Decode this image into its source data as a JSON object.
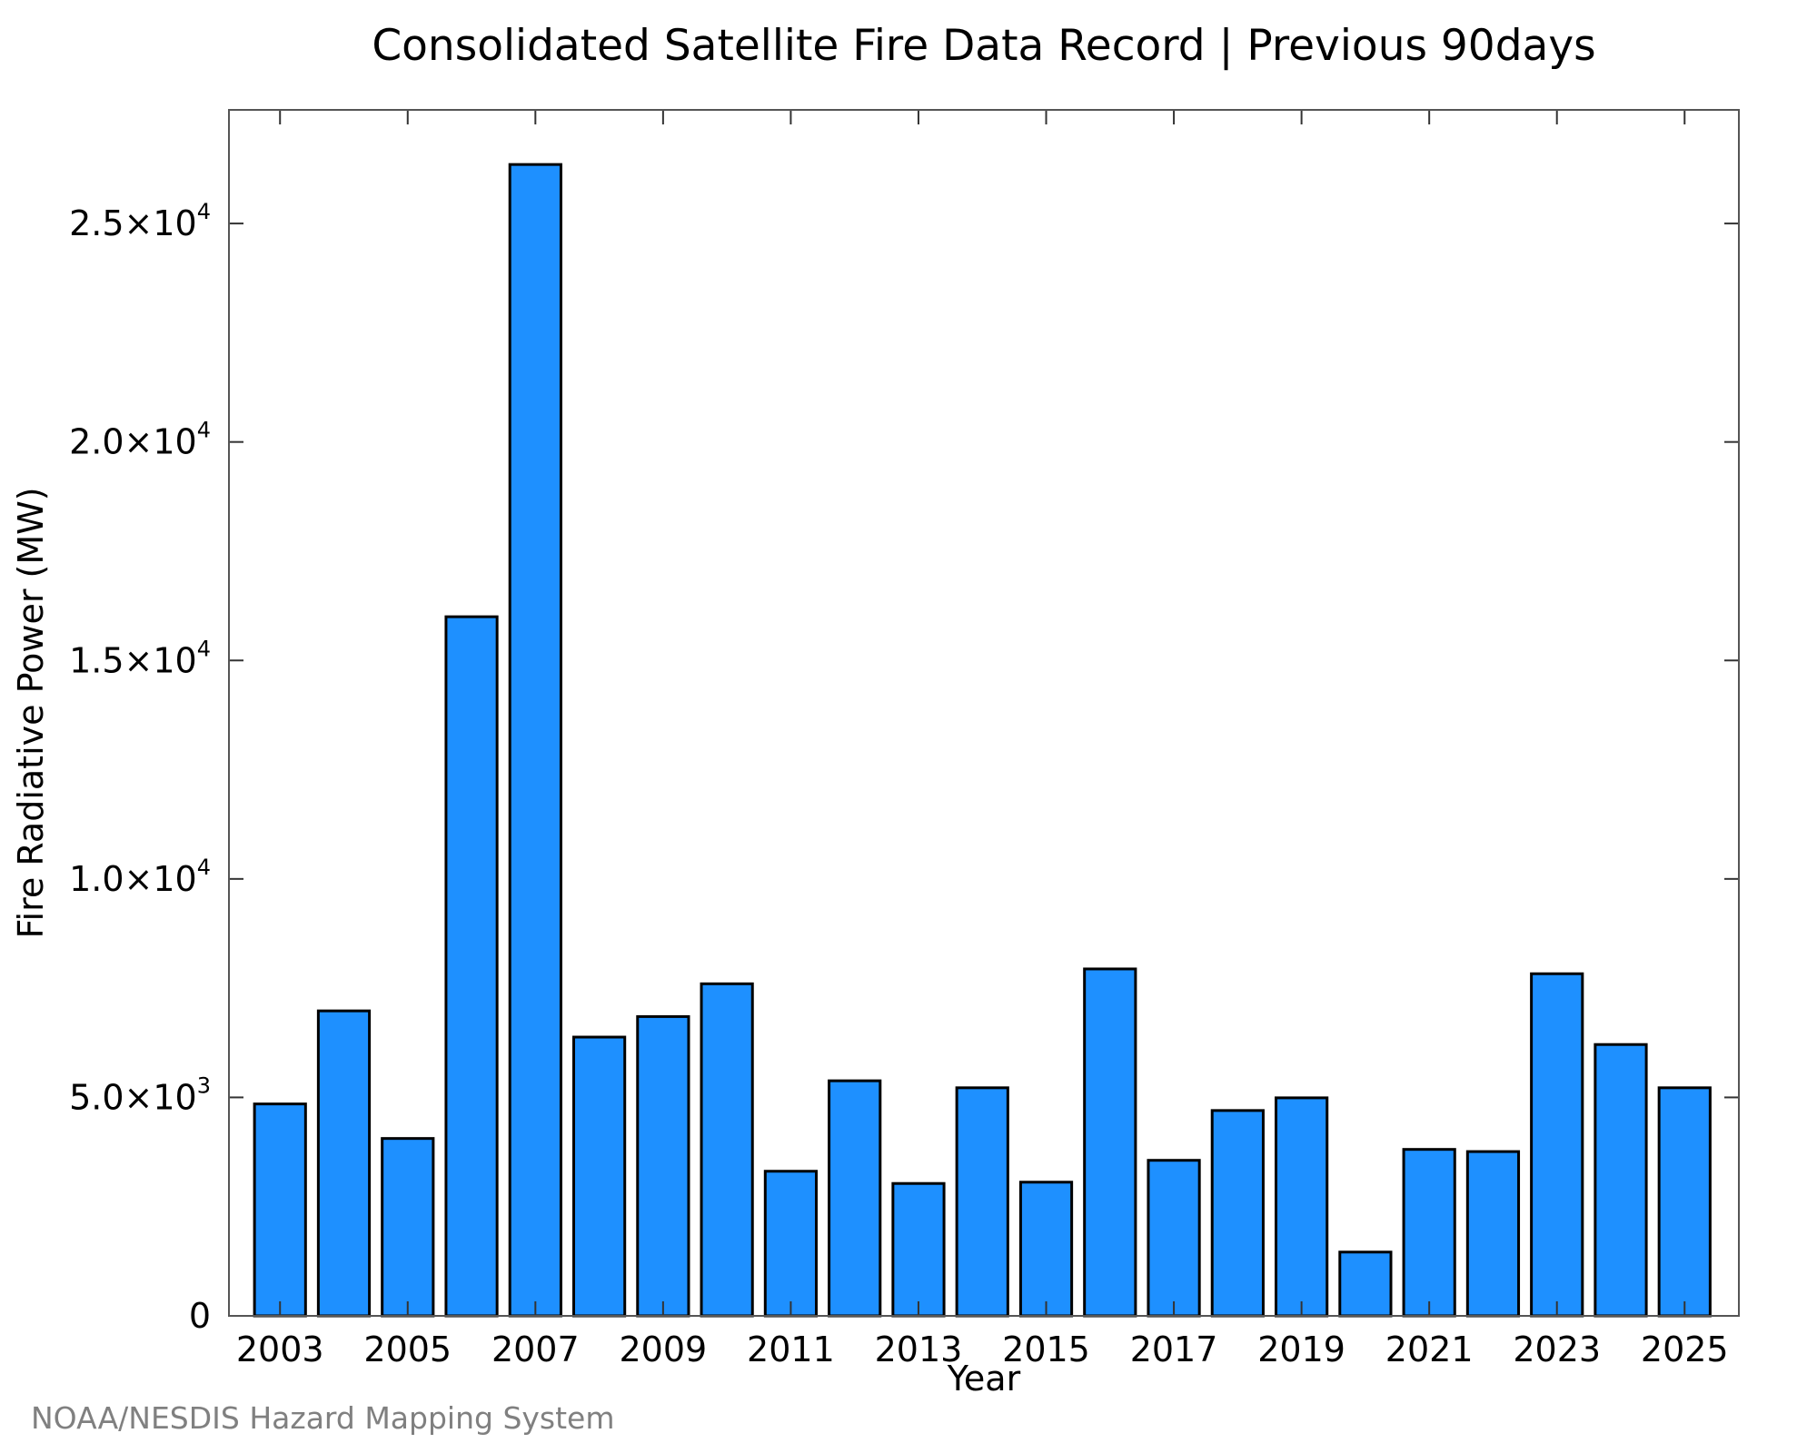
{
  "chart_data": {
    "type": "bar",
    "title": "Consolidated Satellite Fire Data Record | Previous 90days",
    "xlabel": "Year",
    "ylabel": "Fire Radiative Power (MW)",
    "credit": "NOAA/NESDIS Hazard Mapping System",
    "categories": [
      2003,
      2004,
      2005,
      2006,
      2007,
      2008,
      2009,
      2010,
      2011,
      2012,
      2013,
      2014,
      2015,
      2016,
      2017,
      2018,
      2019,
      2020,
      2021,
      2022,
      2023,
      2024,
      2025
    ],
    "values": [
      4850,
      6980,
      4060,
      16000,
      26350,
      6380,
      6850,
      7600,
      3310,
      5380,
      3030,
      5220,
      3060,
      7940,
      3560,
      4700,
      4990,
      1460,
      3810,
      3760,
      7830,
      6210,
      5220
    ],
    "x_tick_labels": [
      "2003",
      "2005",
      "2007",
      "2009",
      "2011",
      "2013",
      "2015",
      "2017",
      "2019",
      "2021",
      "2023",
      "2025"
    ],
    "y_ticks": [
      {
        "value": 0,
        "mantissa": "0",
        "exponent": ""
      },
      {
        "value": 5000,
        "mantissa": "5.0×10",
        "exponent": "3"
      },
      {
        "value": 10000,
        "mantissa": "1.0×10",
        "exponent": "4"
      },
      {
        "value": 15000,
        "mantissa": "1.5×10",
        "exponent": "4"
      },
      {
        "value": 20000,
        "mantissa": "2.0×10",
        "exponent": "4"
      },
      {
        "value": 25000,
        "mantissa": "2.5×10",
        "exponent": "4"
      }
    ],
    "xlim": [
      2002.2,
      2025.85
    ],
    "ylim": [
      0,
      27600
    ],
    "bar_color": "#1e90ff",
    "grid": false,
    "legend": "none"
  }
}
